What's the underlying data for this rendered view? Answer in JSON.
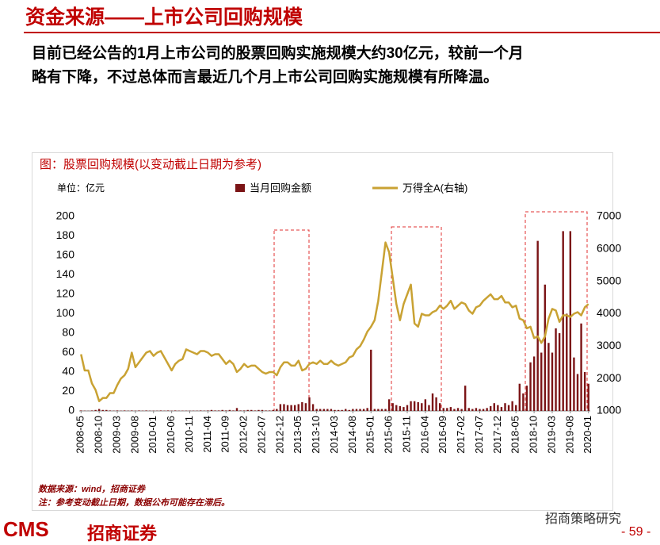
{
  "header": {
    "title": "资金来源——上市公司回购规模",
    "paragraph_lines": [
      "目前已经公告的1月上市公司的股票回购实施规模大约30亿元，较前一个月",
      "略有下降，不过总体而言最近几个月上市公司回购实施规模有所降温。"
    ]
  },
  "chart_data": {
    "type": "bar",
    "title": "图：股票回购规模(以变动截止日期为参考)",
    "unit_label": "单位：亿元",
    "categories": [
      "2008-05",
      null,
      null,
      null,
      null,
      "2008-10",
      null,
      null,
      null,
      null,
      "2009-03",
      null,
      null,
      null,
      null,
      "2009-08",
      null,
      null,
      null,
      null,
      "2010-01",
      null,
      null,
      null,
      null,
      "2010-06",
      null,
      null,
      null,
      null,
      "2010-11",
      null,
      null,
      null,
      null,
      "2011-04",
      null,
      null,
      null,
      null,
      "2011-09",
      null,
      null,
      null,
      null,
      "2012-02",
      null,
      null,
      null,
      null,
      "2012-07",
      null,
      null,
      null,
      null,
      "2012-12",
      null,
      null,
      null,
      null,
      "2013-05",
      null,
      null,
      null,
      null,
      "2013-10",
      null,
      null,
      null,
      null,
      "2014-03",
      null,
      null,
      null,
      null,
      "2014-08",
      null,
      null,
      null,
      null,
      "2015-01",
      null,
      null,
      null,
      null,
      "2015-06",
      null,
      null,
      null,
      null,
      "2015-11",
      null,
      null,
      null,
      null,
      "2016-04",
      null,
      null,
      null,
      null,
      "2016-09",
      null,
      null,
      null,
      null,
      "2017-02",
      null,
      null,
      null,
      null,
      "2017-07",
      null,
      null,
      null,
      null,
      "2017-12",
      null,
      null,
      null,
      null,
      "2018-05",
      null,
      null,
      null,
      null,
      "2018-10",
      null,
      null,
      null,
      null,
      "2019-03",
      null,
      null,
      null,
      null,
      "2019-08",
      null,
      null,
      null,
      null,
      "2020-01"
    ],
    "series": [
      {
        "name": "当月回购金额",
        "type": "bar",
        "color": "#7b1416",
        "axis": "y",
        "values": [
          0.5,
          0.3,
          0.2,
          0.5,
          1,
          2,
          1,
          1,
          0.5,
          0.3,
          0.5,
          0.3,
          0.5,
          0.3,
          0.5,
          0.3,
          0.5,
          0.3,
          0.5,
          0.3,
          0.3,
          0.3,
          0.5,
          0.3,
          0.5,
          0.3,
          0.5,
          0.3,
          0.3,
          0.3,
          0.3,
          0.3,
          0.3,
          0.5,
          0.3,
          0.5,
          1,
          0.5,
          0.5,
          1,
          0.5,
          1,
          0.5,
          3,
          0.5,
          0.5,
          1,
          1,
          0.5,
          1,
          1,
          0.5,
          0.5,
          1,
          2,
          7,
          7,
          6,
          6,
          6,
          7,
          9,
          8,
          14,
          7,
          2,
          2,
          2,
          2,
          2,
          1,
          1,
          1,
          2,
          1,
          2,
          2,
          2,
          2,
          3,
          63,
          2,
          2,
          2,
          2,
          12,
          8,
          6,
          5,
          4,
          6,
          10,
          10,
          9,
          8,
          12,
          6,
          18,
          14,
          8,
          3,
          3,
          4,
          2,
          3,
          2,
          26,
          3,
          2,
          3,
          2,
          2,
          3,
          5,
          8,
          6,
          4,
          8,
          6,
          10,
          6,
          28,
          18,
          26,
          50,
          56,
          175,
          60,
          130,
          70,
          60,
          85,
          80,
          185,
          100,
          185,
          55,
          38,
          90,
          40,
          28
        ]
      },
      {
        "name": "万得全A(右轴)",
        "type": "line",
        "color": "#c9a233",
        "axis": "y2",
        "values": [
          2750,
          2250,
          2250,
          1850,
          1650,
          1300,
          1400,
          1400,
          1550,
          1550,
          1800,
          2000,
          2100,
          2300,
          2800,
          2350,
          2500,
          2650,
          2800,
          2850,
          2700,
          2800,
          2850,
          2650,
          2450,
          2250,
          2450,
          2550,
          2600,
          2900,
          2850,
          2800,
          2750,
          2850,
          2850,
          2800,
          2700,
          2750,
          2750,
          2600,
          2450,
          2550,
          2450,
          2200,
          2300,
          2450,
          2350,
          2400,
          2400,
          2300,
          2200,
          2150,
          2200,
          2200,
          2100,
          2350,
          2500,
          2500,
          2400,
          2400,
          2550,
          2250,
          2300,
          2450,
          2500,
          2450,
          2550,
          2450,
          2450,
          2550,
          2450,
          2400,
          2450,
          2500,
          2650,
          2700,
          2900,
          3000,
          3200,
          3450,
          3600,
          3800,
          4400,
          5300,
          6200,
          5900,
          5100,
          4300,
          3800,
          4300,
          4600,
          4900,
          3700,
          3600,
          4000,
          3950,
          3950,
          4050,
          4100,
          4250,
          4150,
          4250,
          4400,
          4150,
          4250,
          4350,
          4300,
          4100,
          4000,
          4200,
          4250,
          4400,
          4500,
          4600,
          4450,
          4450,
          4550,
          4350,
          4350,
          4200,
          4250,
          3850,
          3800,
          3550,
          3600,
          3250,
          3300,
          3100,
          3300,
          3850,
          4150,
          4100,
          3750,
          3950,
          3950,
          3900,
          4000,
          4050,
          3950,
          4200,
          4300
        ]
      }
    ],
    "ylim": [
      0,
      200
    ],
    "yticks": [
      0,
      20,
      40,
      60,
      80,
      100,
      120,
      140,
      160,
      180,
      200
    ],
    "y2lim": [
      1000,
      7000
    ],
    "y2ticks": [
      1000,
      2000,
      3000,
      4000,
      5000,
      6000,
      7000
    ]
  },
  "notes": [
    "数据来源：wind，招商证券",
    "注：参考变动截止日期，数据公布可能存在滞后。"
  ],
  "footer": {
    "logo_text": "CMS",
    "logo_name": "招商证券",
    "wechat": "招商策略研究",
    "page": "- 59 -"
  }
}
